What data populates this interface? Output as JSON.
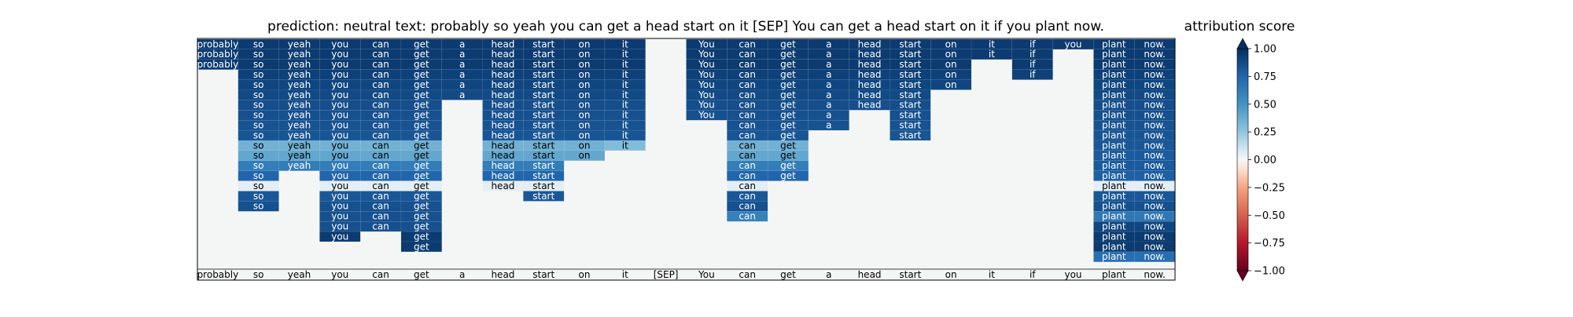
{
  "chart_data": {
    "type": "heatmap",
    "title": "prediction:  neutral     text:  probably so yeah you can get a head start on it [SEP] You can get a head start on it if you plant now.",
    "xlabel": "",
    "ylabel": "",
    "tokens": [
      "probably",
      "so",
      "yeah",
      "you",
      "can",
      "get",
      "a",
      "head",
      "start",
      "on",
      "it",
      "[SEP]",
      "You",
      "can",
      "get",
      "a",
      "head",
      "start",
      "on",
      "it",
      "if",
      "you",
      "plant",
      "now."
    ],
    "rows": [
      [
        [
          0,
          0.95
        ],
        [
          1,
          0.95
        ],
        [
          2,
          0.95
        ],
        [
          3,
          0.95
        ],
        [
          4,
          0.95
        ],
        [
          5,
          0.95
        ],
        [
          6,
          0.95
        ],
        [
          7,
          0.95
        ],
        [
          8,
          0.95
        ],
        [
          9,
          0.95
        ],
        [
          10,
          0.95
        ],
        [
          12,
          0.95
        ],
        [
          13,
          0.95
        ],
        [
          14,
          0.95
        ],
        [
          15,
          0.95
        ],
        [
          16,
          0.95
        ],
        [
          17,
          0.95
        ],
        [
          18,
          0.95
        ],
        [
          19,
          0.95
        ],
        [
          20,
          0.95
        ],
        [
          21,
          0.95
        ],
        [
          22,
          0.95
        ],
        [
          23,
          0.95
        ]
      ],
      [
        [
          0,
          0.95
        ],
        [
          1,
          0.95
        ],
        [
          2,
          0.95
        ],
        [
          3,
          0.95
        ],
        [
          4,
          0.95
        ],
        [
          5,
          0.95
        ],
        [
          6,
          0.95
        ],
        [
          7,
          0.95
        ],
        [
          8,
          0.95
        ],
        [
          9,
          0.95
        ],
        [
          10,
          0.95
        ],
        [
          12,
          0.95
        ],
        [
          13,
          0.95
        ],
        [
          14,
          0.95
        ],
        [
          15,
          0.95
        ],
        [
          16,
          0.95
        ],
        [
          17,
          0.95
        ],
        [
          18,
          0.95
        ],
        [
          19,
          0.95
        ],
        [
          20,
          0.95
        ],
        [
          22,
          0.95
        ],
        [
          23,
          0.95
        ]
      ],
      [
        [
          0,
          0.95
        ],
        [
          1,
          0.95
        ],
        [
          2,
          0.95
        ],
        [
          3,
          0.95
        ],
        [
          4,
          0.95
        ],
        [
          5,
          0.95
        ],
        [
          6,
          0.95
        ],
        [
          7,
          0.95
        ],
        [
          8,
          0.95
        ],
        [
          9,
          0.95
        ],
        [
          10,
          0.95
        ],
        [
          12,
          0.95
        ],
        [
          13,
          0.95
        ],
        [
          14,
          0.95
        ],
        [
          15,
          0.95
        ],
        [
          16,
          0.95
        ],
        [
          17,
          0.95
        ],
        [
          18,
          0.95
        ],
        [
          20,
          0.95
        ],
        [
          22,
          0.95
        ],
        [
          23,
          0.95
        ]
      ],
      [
        [
          1,
          0.92
        ],
        [
          2,
          0.92
        ],
        [
          3,
          0.92
        ],
        [
          4,
          0.92
        ],
        [
          5,
          0.92
        ],
        [
          6,
          0.92
        ],
        [
          7,
          0.92
        ],
        [
          8,
          0.92
        ],
        [
          9,
          0.92
        ],
        [
          10,
          0.92
        ],
        [
          12,
          0.92
        ],
        [
          13,
          0.92
        ],
        [
          14,
          0.92
        ],
        [
          15,
          0.92
        ],
        [
          16,
          0.92
        ],
        [
          17,
          0.92
        ],
        [
          18,
          0.92
        ],
        [
          20,
          0.92
        ],
        [
          22,
          0.92
        ],
        [
          23,
          0.92
        ]
      ],
      [
        [
          1,
          0.9
        ],
        [
          2,
          0.9
        ],
        [
          3,
          0.9
        ],
        [
          4,
          0.9
        ],
        [
          5,
          0.9
        ],
        [
          6,
          0.9
        ],
        [
          7,
          0.9
        ],
        [
          8,
          0.9
        ],
        [
          9,
          0.9
        ],
        [
          10,
          0.9
        ],
        [
          12,
          0.9
        ],
        [
          13,
          0.9
        ],
        [
          14,
          0.9
        ],
        [
          15,
          0.9
        ],
        [
          16,
          0.9
        ],
        [
          17,
          0.9
        ],
        [
          18,
          0.9
        ],
        [
          22,
          0.9
        ],
        [
          23,
          0.9
        ]
      ],
      [
        [
          1,
          0.88
        ],
        [
          2,
          0.88
        ],
        [
          3,
          0.88
        ],
        [
          4,
          0.88
        ],
        [
          5,
          0.88
        ],
        [
          6,
          0.88
        ],
        [
          7,
          0.88
        ],
        [
          8,
          0.88
        ],
        [
          9,
          0.88
        ],
        [
          10,
          0.88
        ],
        [
          12,
          0.88
        ],
        [
          13,
          0.88
        ],
        [
          14,
          0.88
        ],
        [
          15,
          0.88
        ],
        [
          16,
          0.88
        ],
        [
          17,
          0.88
        ],
        [
          22,
          0.88
        ],
        [
          23,
          0.88
        ]
      ],
      [
        [
          1,
          0.86
        ],
        [
          2,
          0.86
        ],
        [
          3,
          0.86
        ],
        [
          4,
          0.86
        ],
        [
          5,
          0.86
        ],
        [
          7,
          0.86
        ],
        [
          8,
          0.86
        ],
        [
          9,
          0.86
        ],
        [
          10,
          0.86
        ],
        [
          12,
          0.86
        ],
        [
          13,
          0.86
        ],
        [
          14,
          0.86
        ],
        [
          15,
          0.86
        ],
        [
          16,
          0.86
        ],
        [
          17,
          0.86
        ],
        [
          22,
          0.86
        ],
        [
          23,
          0.86
        ]
      ],
      [
        [
          1,
          0.85
        ],
        [
          2,
          0.85
        ],
        [
          3,
          0.85
        ],
        [
          4,
          0.85
        ],
        [
          5,
          0.85
        ],
        [
          7,
          0.85
        ],
        [
          8,
          0.85
        ],
        [
          9,
          0.85
        ],
        [
          10,
          0.85
        ],
        [
          12,
          0.85
        ],
        [
          13,
          0.85
        ],
        [
          14,
          0.85
        ],
        [
          15,
          0.85
        ],
        [
          17,
          0.85
        ],
        [
          22,
          0.85
        ],
        [
          23,
          0.85
        ]
      ],
      [
        [
          1,
          0.84
        ],
        [
          2,
          0.84
        ],
        [
          3,
          0.84
        ],
        [
          4,
          0.84
        ],
        [
          5,
          0.84
        ],
        [
          7,
          0.84
        ],
        [
          8,
          0.84
        ],
        [
          9,
          0.84
        ],
        [
          10,
          0.84
        ],
        [
          13,
          0.84
        ],
        [
          14,
          0.84
        ],
        [
          15,
          0.84
        ],
        [
          17,
          0.84
        ],
        [
          22,
          0.84
        ],
        [
          23,
          0.84
        ]
      ],
      [
        [
          1,
          0.83
        ],
        [
          2,
          0.83
        ],
        [
          3,
          0.83
        ],
        [
          4,
          0.83
        ],
        [
          5,
          0.83
        ],
        [
          7,
          0.83
        ],
        [
          8,
          0.83
        ],
        [
          9,
          0.83
        ],
        [
          10,
          0.83
        ],
        [
          13,
          0.83
        ],
        [
          14,
          0.83
        ],
        [
          17,
          0.83
        ],
        [
          22,
          0.83
        ],
        [
          23,
          0.83
        ]
      ],
      [
        [
          1,
          0.35
        ],
        [
          2,
          0.35
        ],
        [
          3,
          0.35
        ],
        [
          4,
          0.35
        ],
        [
          5,
          0.35
        ],
        [
          7,
          0.35
        ],
        [
          8,
          0.35
        ],
        [
          9,
          0.35
        ],
        [
          10,
          0.3
        ],
        [
          13,
          0.35
        ],
        [
          14,
          0.35
        ],
        [
          22,
          0.82
        ],
        [
          23,
          0.82
        ]
      ],
      [
        [
          1,
          0.4
        ],
        [
          2,
          0.4
        ],
        [
          3,
          0.4
        ],
        [
          4,
          0.4
        ],
        [
          5,
          0.4
        ],
        [
          7,
          0.4
        ],
        [
          8,
          0.4
        ],
        [
          9,
          0.4
        ],
        [
          13,
          0.4
        ],
        [
          14,
          0.4
        ],
        [
          22,
          0.8
        ],
        [
          23,
          0.8
        ]
      ],
      [
        [
          1,
          0.62
        ],
        [
          2,
          0.62
        ],
        [
          3,
          0.62
        ],
        [
          4,
          0.62
        ],
        [
          5,
          0.62
        ],
        [
          7,
          0.62
        ],
        [
          8,
          0.62
        ],
        [
          13,
          0.62
        ],
        [
          14,
          0.62
        ],
        [
          22,
          0.8
        ],
        [
          23,
          0.8
        ]
      ],
      [
        [
          1,
          0.75
        ],
        [
          3,
          0.75
        ],
        [
          4,
          0.75
        ],
        [
          5,
          0.75
        ],
        [
          7,
          0.75
        ],
        [
          8,
          0.75
        ],
        [
          13,
          0.75
        ],
        [
          14,
          0.75
        ],
        [
          22,
          0.78
        ],
        [
          23,
          0.78
        ]
      ],
      [
        [
          1,
          0.05
        ],
        [
          3,
          0.05
        ],
        [
          4,
          0.05
        ],
        [
          5,
          0.05
        ],
        [
          7,
          0.05
        ],
        [
          8,
          0.05
        ],
        [
          13,
          0.05
        ],
        [
          22,
          0.05
        ],
        [
          23,
          0.05
        ]
      ],
      [
        [
          1,
          0.82
        ],
        [
          3,
          0.82
        ],
        [
          4,
          0.82
        ],
        [
          5,
          0.82
        ],
        [
          8,
          0.82
        ],
        [
          13,
          0.82
        ],
        [
          22,
          0.82
        ],
        [
          23,
          0.82
        ]
      ],
      [
        [
          1,
          0.85
        ],
        [
          3,
          0.85
        ],
        [
          4,
          0.85
        ],
        [
          5,
          0.85
        ],
        [
          13,
          0.85
        ],
        [
          22,
          0.85
        ],
        [
          23,
          0.85
        ]
      ],
      [
        [
          3,
          0.85
        ],
        [
          4,
          0.85
        ],
        [
          5,
          0.85
        ],
        [
          13,
          0.6
        ],
        [
          22,
          0.65
        ],
        [
          23,
          0.65
        ]
      ],
      [
        [
          3,
          0.85
        ],
        [
          4,
          0.85
        ],
        [
          5,
          0.85
        ],
        [
          22,
          0.9
        ],
        [
          23,
          0.9
        ]
      ],
      [
        [
          3,
          0.95
        ],
        [
          5,
          0.95
        ],
        [
          22,
          0.95
        ],
        [
          23,
          0.95
        ]
      ],
      [
        [
          5,
          0.95
        ],
        [
          22,
          0.95
        ],
        [
          23,
          0.95
        ]
      ],
      [
        [
          22,
          0.7
        ],
        [
          23,
          0.7
        ]
      ]
    ],
    "colorbar": {
      "label": "attribution score",
      "min": -1.0,
      "max": 1.0,
      "ticks": [
        "1.00",
        "0.75",
        "0.50",
        "0.25",
        "0.00",
        "−0.25",
        "−0.50",
        "−0.75",
        "−1.00"
      ]
    },
    "colormap": "RdBu",
    "background_color": "#f4f6f6",
    "dark_text_color": "#000000",
    "light_text_color": "#ffffff"
  }
}
